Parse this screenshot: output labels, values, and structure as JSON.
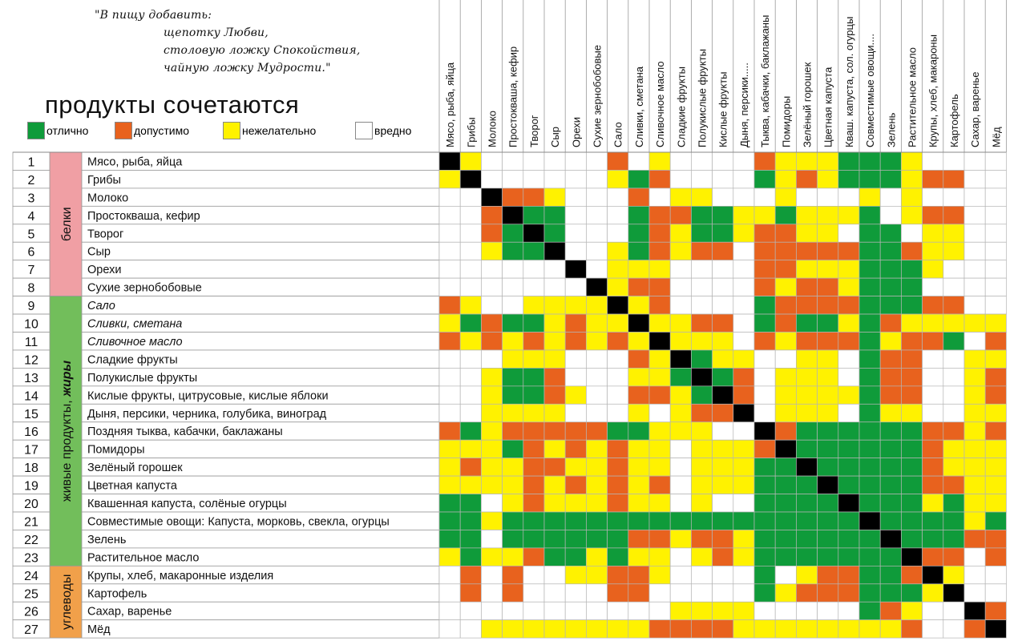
{
  "quote": {
    "line1": "\"В пищу добавить:",
    "line2": "щепотку Любви,",
    "line3": "столовую ложку Спокойствия,",
    "line4": "чайную ложку Мудрости.\""
  },
  "title": "продукты сочетаются",
  "legend": [
    {
      "label": "отлично",
      "color": "#0f9b3a"
    },
    {
      "label": "допустимо",
      "color": "#e8621e"
    },
    {
      "label": "нежелательно",
      "color": "#fff200"
    },
    {
      "label": "вредно",
      "color": "#ffffff"
    }
  ],
  "colors": {
    "G": "#0f9b3a",
    "O": "#e8621e",
    "Y": "#fff200",
    "W": "#ffffff",
    "B": "#000000"
  },
  "groups": [
    {
      "label": "белки",
      "color": "#f09fa4",
      "rows": [
        1,
        8
      ]
    },
    {
      "label": "живые продукты,",
      "label_bold": "жиры",
      "color": "#72be5b",
      "rows": [
        9,
        23
      ]
    },
    {
      "label": "углеводы",
      "color": "#f1a04a",
      "rows": [
        24,
        27
      ]
    }
  ],
  "rows": [
    {
      "num": "1",
      "label": "Мясо, рыба, яйца",
      "italic": false
    },
    {
      "num": "2",
      "label": "Грибы",
      "italic": false
    },
    {
      "num": "3",
      "label": "Молоко",
      "italic": false
    },
    {
      "num": "4",
      "label": "Простокваша, кефир",
      "italic": false
    },
    {
      "num": "5",
      "label": "Творог",
      "italic": false
    },
    {
      "num": "6",
      "label": "Сыр",
      "italic": false
    },
    {
      "num": "7",
      "label": "Орехи",
      "italic": false
    },
    {
      "num": "8",
      "label": "Сухие зернобобовые",
      "italic": false
    },
    {
      "num": "9",
      "label": "Сало",
      "italic": true
    },
    {
      "num": "10",
      "label": "Сливки, сметана",
      "italic": true
    },
    {
      "num": "11",
      "label": "Сливочное масло",
      "italic": true
    },
    {
      "num": "12",
      "label": "Сладкие фрукты",
      "italic": false
    },
    {
      "num": "13",
      "label": "Полукислые фрукты",
      "italic": false
    },
    {
      "num": "14",
      "label": "Кислые фрукты, цитрусовые, кислые яблоки",
      "italic": false
    },
    {
      "num": "15",
      "label": "Дыня, персики, черника, голубика, виноград",
      "italic": false
    },
    {
      "num": "16",
      "label": "Поздняя тыква, кабачки, баклажаны",
      "italic": false
    },
    {
      "num": "17",
      "label": "Помидоры",
      "italic": false
    },
    {
      "num": "18",
      "label": "Зелёный горошек",
      "italic": false
    },
    {
      "num": "19",
      "label": "Цветная капуста",
      "italic": false
    },
    {
      "num": "20",
      "label": "Квашенная капуста, солёные огурцы",
      "italic": false
    },
    {
      "num": "21",
      "label": "Совместимые овощи: Капуста, морковь, свекла, огурцы",
      "italic": false
    },
    {
      "num": "22",
      "label": "Зелень",
      "italic": false
    },
    {
      "num": "23",
      "label": "Растительное масло",
      "italic": false
    },
    {
      "num": "24",
      "label": "Крупы, хлеб, макаронные изделия",
      "italic": false
    },
    {
      "num": "25",
      "label": "Картофель",
      "italic": false
    },
    {
      "num": "26",
      "label": "Сахар, варенье",
      "italic": false
    },
    {
      "num": "27",
      "label": "Мёд",
      "italic": false
    }
  ],
  "columns": [
    "Мясо, рыба, яйца",
    "Грибы",
    "Молоко",
    "Простокваша, кефир",
    "Творог",
    "Сыр",
    "Орехи",
    "Сухие зернобобовые",
    "Сало",
    "Сливки, сметана",
    "Сливочное масло",
    "Сладкие фрукты",
    "Полукислые фрукты",
    "Кислые фрукты",
    "Дыня, персики.....",
    "Тыква, кабачки, баклажаны",
    "Помидоры",
    "Зелёный горошек",
    "Цветная капуста",
    "Кваш. капуста, сол. огурцы",
    "Совместимые овощи....",
    "Зелень",
    "Растительное масло",
    "Крупы, хлеб, макароны",
    "Картофель",
    "Сахар, варенье",
    "Мёд"
  ],
  "matrix": [
    "BYWWWWWWOWYWWWWOYYYGGGYWWWW",
    "YBWWWWWWYGOWWWWGYOYGGGYOOWW",
    "WWBOOYWWWOWYYWWWYWWWYWYWWWW",
    "WWOBGGWWWGOOGGYYGYYYGWYOOWW",
    "WWOGBGWWWGOYGGYOOYYWGGWYYWW",
    "WWYGGBWWYGOYOOWOOOOOGGOYYWW",
    "WWWWWWBWYYYWWWWOOYYYGGGYWWW",
    "WWWWWWWBYOOWWWWOYOOYGGGWWWW",
    "OYWWYYYYBYOWWWWGOOOOGGGOOWW",
    "YGOGGYOYYBYYOOWGOGGYGOYYYYY",
    "OYOYOYOYOYBYYYWOYOOOGYOOGWO",
    "WWWYYYWWWOYBGYYWWYYWGOOWWYY",
    "WWYGGOWWWYYGBGOWYYYWGOOWWYO",
    "WWYGGOYWWOOYGBOWYYYYGOOWWYO",
    "WWYYYYWWWYWYOOBWYYYWGYYWWYY",
    "OGYOOOOOGGYYYWWBOGGGGGGOOYO",
    "YYYGOYOYOYYWYYYOBGGGGGGOYYY",
    "YOYYOOYYOYYWYYYGGBGGGGGOYYY",
    "YYYYOYOYOYOWYYYGGGBGGGGOOYY",
    "GGWYOYYYOYYWYWWGGGGBGGGYGYY",
    "GGYGGGGGGGGGGGGGGGGGBGGGGYG",
    "GGWGGGGGGOOYOOYGGGGGGBGGGOO",
    "YGYYOGGYGYYWYOYGGGGGGGBOOWO",
    "WOWOWWYYOOYWWWWGWYOOGGOBYWW",
    "WOWOWWWWOOWWWWWGYOOOGGGYBWW",
    "WWWWWWWWWWWYYYYWWWWWGOYWWBO",
    "WWYYYYYYYYOOOOYYYYYYYYOWWOB"
  ]
}
